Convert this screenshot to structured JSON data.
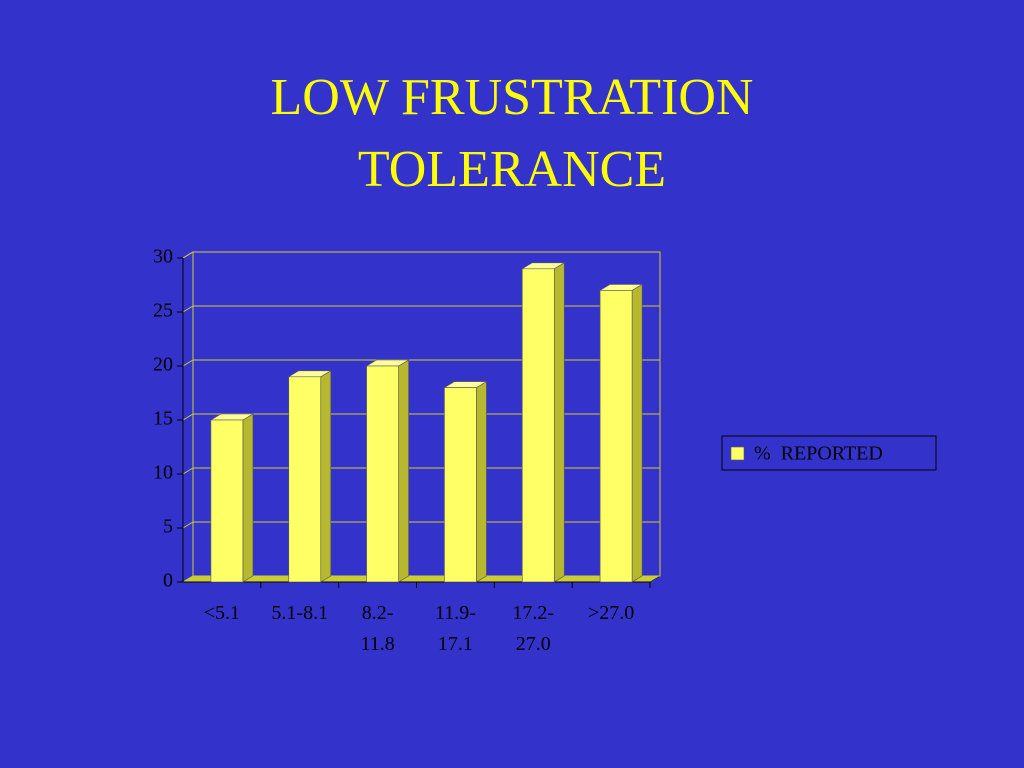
{
  "chart_data": {
    "type": "bar",
    "title": "LOW FRUSTRATION TOLERANCE",
    "categories": [
      "<5.1",
      "5.1-8.1",
      "8.2-11.8",
      "11.9-17.1",
      "17.2-27.0",
      ">27.0"
    ],
    "series": [
      {
        "name": "%  REPORTED",
        "color": "#ffff66",
        "values": [
          15,
          19,
          20,
          18,
          29,
          27
        ]
      }
    ],
    "ylim": [
      0,
      30
    ],
    "yticks": [
      0,
      5,
      10,
      15,
      20,
      25,
      30
    ],
    "grid": true,
    "legend": "right"
  }
}
